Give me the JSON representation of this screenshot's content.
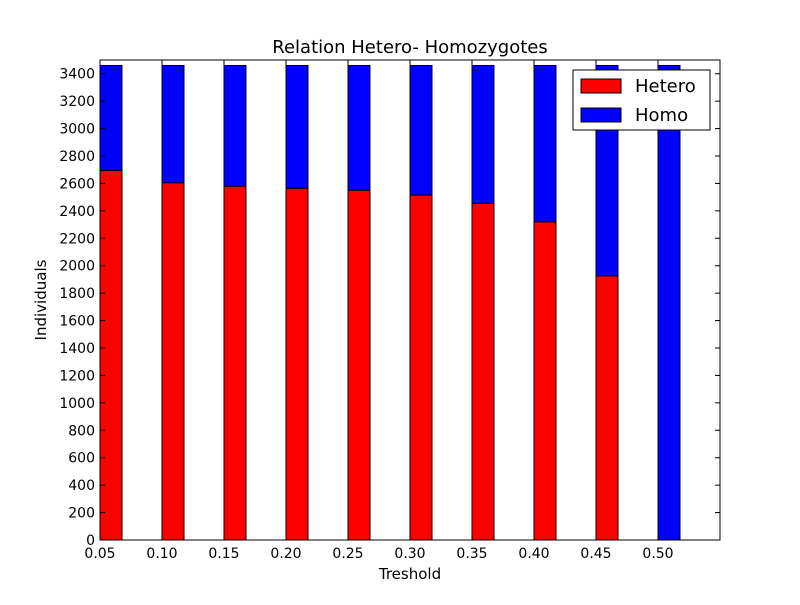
{
  "chart_data": {
    "type": "bar",
    "stacked": true,
    "title": "Relation Hetero- Homozygotes",
    "xlabel": "Treshold",
    "ylabel": "Individuals",
    "categories": [
      "0.05",
      "0.10",
      "0.15",
      "0.20",
      "0.25",
      "0.30",
      "0.35",
      "0.40",
      "0.45",
      "0.50"
    ],
    "x_values": [
      0.05,
      0.1,
      0.15,
      0.2,
      0.25,
      0.3,
      0.35,
      0.4,
      0.45,
      0.5
    ],
    "xlim": [
      0.05,
      0.55
    ],
    "ylim": [
      0,
      3500
    ],
    "yticks": [
      0,
      200,
      400,
      600,
      800,
      1000,
      1200,
      1400,
      1600,
      1800,
      2000,
      2200,
      2400,
      2600,
      2800,
      3000,
      3200,
      3400
    ],
    "legend_position": "top-right",
    "grid": false,
    "series": [
      {
        "name": "Hetero",
        "color": "#ff0000",
        "values": [
          2695,
          2605,
          2580,
          2565,
          2550,
          2515,
          2455,
          2320,
          1925,
          0
        ]
      },
      {
        "name": "Homo",
        "color": "#0000ff",
        "values": [
          765,
          855,
          880,
          895,
          910,
          945,
          1005,
          1140,
          1535,
          3460
        ]
      }
    ]
  }
}
